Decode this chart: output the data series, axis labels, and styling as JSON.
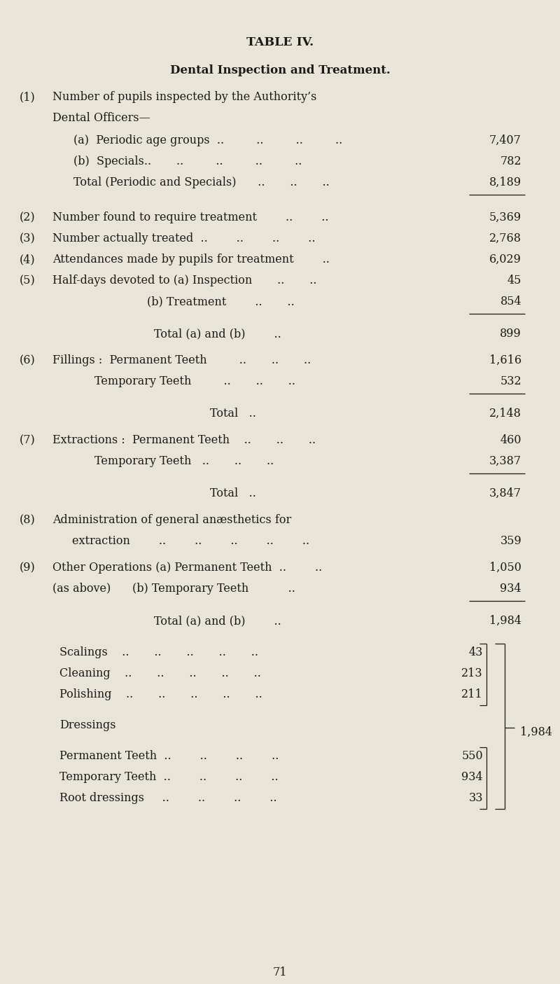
{
  "bg_color": "#e8e4d8",
  "text_color": "#1a1a1a",
  "title1": "TABLE IV.",
  "title2": "Dental Inspection and Treatment.",
  "page_number": "71",
  "fig_w": 8.0,
  "fig_h": 14.05,
  "dpi": 100
}
